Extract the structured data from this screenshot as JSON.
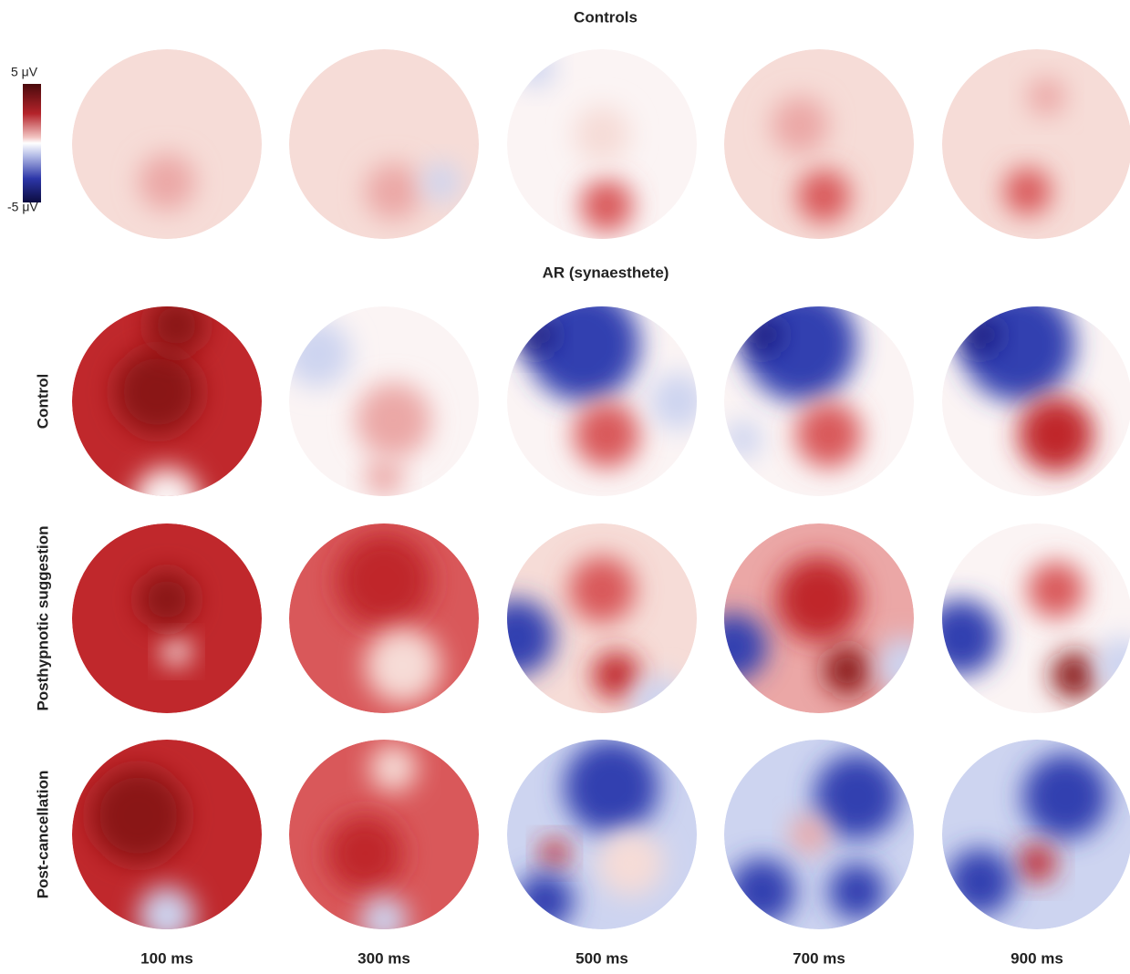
{
  "titles": [
    "Controls",
    "AR (synaesthete)"
  ],
  "row_labels": [
    "Control",
    "Posthypnotic suggestion",
    "Post-cancellation"
  ],
  "column_labels": [
    "100 ms",
    "300 ms",
    "500 ms",
    "700 ms",
    "900 ms"
  ],
  "colorbar": {
    "max_label": "5 μV",
    "min_label": "-5 μV"
  }
}
